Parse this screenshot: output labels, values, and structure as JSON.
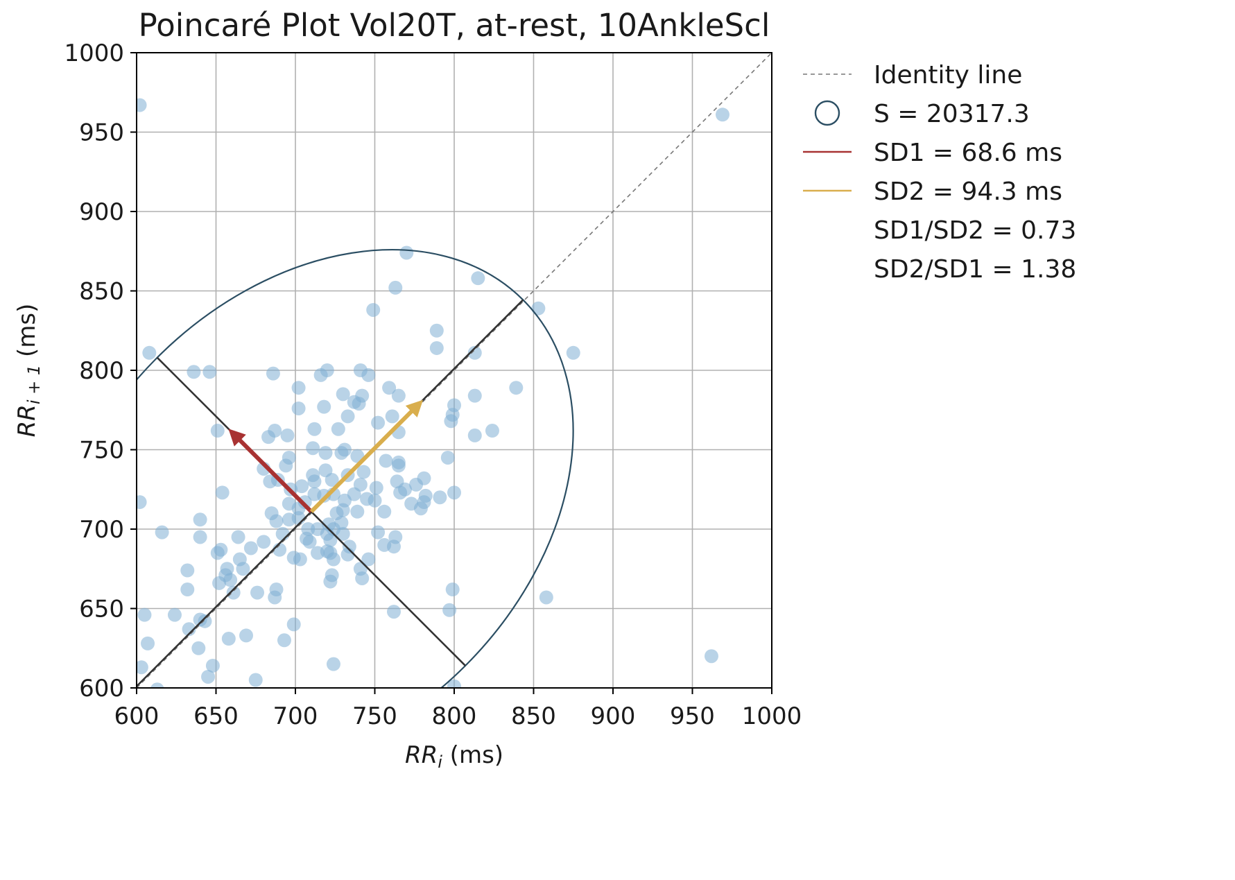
{
  "chart_data": {
    "type": "scatter",
    "title": "Poincaré Plot Vol20T, at-rest, 10AnkleScl",
    "xlabel": {
      "base": "RR",
      "sub": "i",
      "unit": " (ms)"
    },
    "ylabel": {
      "base": "RR",
      "sub": "i + 1",
      "unit": " (ms)"
    },
    "xlim": [
      600,
      1000
    ],
    "ylim": [
      600,
      1000
    ],
    "xticks": [
      "600",
      "650",
      "700",
      "750",
      "800",
      "850",
      "900",
      "950",
      "1000"
    ],
    "yticks": [
      "600",
      "650",
      "700",
      "750",
      "800",
      "850",
      "900",
      "950",
      "1000"
    ],
    "grid": true,
    "legend_placement": "outside-right-top",
    "colors": {
      "points": "#7fafd4",
      "ellipse": "#2b4e63",
      "identity": "#777777",
      "axes": "#333333",
      "sd1": "#a83232",
      "sd2": "#d9ae4d"
    },
    "legend": [
      {
        "kind": "dashed-line",
        "label": "Identity line"
      },
      {
        "kind": "circle",
        "label": "S = 20317.3"
      },
      {
        "kind": "line-sd1",
        "label": "SD1 = 68.6 ms"
      },
      {
        "kind": "line-sd2",
        "label": "SD2 = 94.3 ms"
      },
      {
        "kind": "none",
        "label": "SD1/SD2 = 0.73"
      },
      {
        "kind": "none",
        "label": "SD2/SD1 = 1.38"
      }
    ],
    "center": [
      710,
      711
    ],
    "sd1": 68.6,
    "sd2": 94.3,
    "ellipse_rotation_deg": 45,
    "points": [
      [
        602,
        967
      ],
      [
        969,
        961
      ],
      [
        770,
        874
      ],
      [
        815,
        858
      ],
      [
        763,
        852
      ],
      [
        853,
        839
      ],
      [
        749,
        838
      ],
      [
        789,
        825
      ],
      [
        789,
        814
      ],
      [
        608,
        811
      ],
      [
        813,
        811
      ],
      [
        875,
        811
      ],
      [
        636,
        799
      ],
      [
        646,
        799
      ],
      [
        686,
        798
      ],
      [
        720,
        800
      ],
      [
        741,
        800
      ],
      [
        716,
        797
      ],
      [
        746,
        797
      ],
      [
        702,
        789
      ],
      [
        759,
        789
      ],
      [
        730,
        785
      ],
      [
        742,
        784
      ],
      [
        813,
        784
      ],
      [
        839,
        789
      ],
      [
        740,
        779
      ],
      [
        765,
        784
      ],
      [
        718,
        777
      ],
      [
        702,
        776
      ],
      [
        733,
        771
      ],
      [
        761,
        771
      ],
      [
        737,
        780
      ],
      [
        727,
        763
      ],
      [
        712,
        763
      ],
      [
        651,
        762
      ],
      [
        687,
        762
      ],
      [
        752,
        767
      ],
      [
        798,
        768
      ],
      [
        683,
        758
      ],
      [
        799,
        772
      ],
      [
        800,
        778
      ],
      [
        824,
        762
      ],
      [
        813,
        759
      ],
      [
        765,
        761
      ],
      [
        695,
        759
      ],
      [
        729,
        748
      ],
      [
        711,
        751
      ],
      [
        719,
        748
      ],
      [
        731,
        750
      ],
      [
        739,
        746
      ],
      [
        696,
        745
      ],
      [
        694,
        740
      ],
      [
        765,
        742
      ],
      [
        757,
        743
      ],
      [
        765,
        740
      ],
      [
        743,
        736
      ],
      [
        733,
        734
      ],
      [
        711,
        734
      ],
      [
        719,
        737
      ],
      [
        723,
        731
      ],
      [
        751,
        726
      ],
      [
        764,
        730
      ],
      [
        766,
        723
      ],
      [
        781,
        732
      ],
      [
        776,
        728
      ],
      [
        796,
        745
      ],
      [
        769,
        725
      ],
      [
        773,
        716
      ],
      [
        782,
        721
      ],
      [
        781,
        717
      ],
      [
        779,
        713
      ],
      [
        791,
        720
      ],
      [
        800,
        723
      ],
      [
        745,
        719
      ],
      [
        750,
        718
      ],
      [
        737,
        722
      ],
      [
        741,
        728
      ],
      [
        724,
        722
      ],
      [
        731,
        718
      ],
      [
        730,
        712
      ],
      [
        712,
        730
      ],
      [
        704,
        727
      ],
      [
        697,
        725
      ],
      [
        680,
        738
      ],
      [
        689,
        731
      ],
      [
        684,
        730
      ],
      [
        696,
        716
      ],
      [
        702,
        713
      ],
      [
        706,
        717
      ],
      [
        712,
        722
      ],
      [
        718,
        721
      ],
      [
        726,
        710
      ],
      [
        739,
        711
      ],
      [
        756,
        711
      ],
      [
        685,
        710
      ],
      [
        696,
        706
      ],
      [
        702,
        707
      ],
      [
        721,
        703
      ],
      [
        708,
        700
      ],
      [
        714,
        700
      ],
      [
        720,
        697
      ],
      [
        724,
        700
      ],
      [
        729,
        704
      ],
      [
        730,
        697
      ],
      [
        722,
        693
      ],
      [
        709,
        692
      ],
      [
        703,
        681
      ],
      [
        722,
        685
      ],
      [
        720,
        686
      ],
      [
        699,
        682
      ],
      [
        714,
        685
      ],
      [
        733,
        684
      ],
      [
        752,
        698
      ],
      [
        756,
        690
      ],
      [
        763,
        695
      ],
      [
        762,
        689
      ],
      [
        654,
        723
      ],
      [
        602,
        717
      ],
      [
        640,
        706
      ],
      [
        640,
        695
      ],
      [
        616,
        698
      ],
      [
        664,
        695
      ],
      [
        665,
        681
      ],
      [
        672,
        688
      ],
      [
        680,
        692
      ],
      [
        667,
        675
      ],
      [
        659,
        668
      ],
      [
        661,
        660
      ],
      [
        676,
        660
      ],
      [
        688,
        662
      ],
      [
        687,
        657
      ],
      [
        653,
        687
      ],
      [
        651,
        685
      ],
      [
        657,
        675
      ],
      [
        656,
        671
      ],
      [
        652,
        666
      ],
      [
        632,
        674
      ],
      [
        632,
        662
      ],
      [
        624,
        646
      ],
      [
        633,
        637
      ],
      [
        639,
        625
      ],
      [
        640,
        643
      ],
      [
        643,
        642
      ],
      [
        648,
        614
      ],
      [
        645,
        607
      ],
      [
        669,
        633
      ],
      [
        658,
        631
      ],
      [
        675,
        605
      ],
      [
        693,
        630
      ],
      [
        699,
        640
      ],
      [
        724,
        615
      ],
      [
        723,
        671
      ],
      [
        722,
        667
      ],
      [
        741,
        675
      ],
      [
        742,
        669
      ],
      [
        746,
        681
      ],
      [
        762,
        648
      ],
      [
        797,
        649
      ],
      [
        799,
        662
      ],
      [
        800,
        601
      ],
      [
        858,
        657
      ],
      [
        962,
        620
      ],
      [
        613,
        599
      ],
      [
        603,
        613
      ],
      [
        607,
        628
      ],
      [
        605,
        646
      ],
      [
        690,
        687
      ],
      [
        692,
        697
      ],
      [
        688,
        705
      ],
      [
        724,
        681
      ],
      [
        734,
        689
      ],
      [
        707,
        694
      ]
    ]
  }
}
